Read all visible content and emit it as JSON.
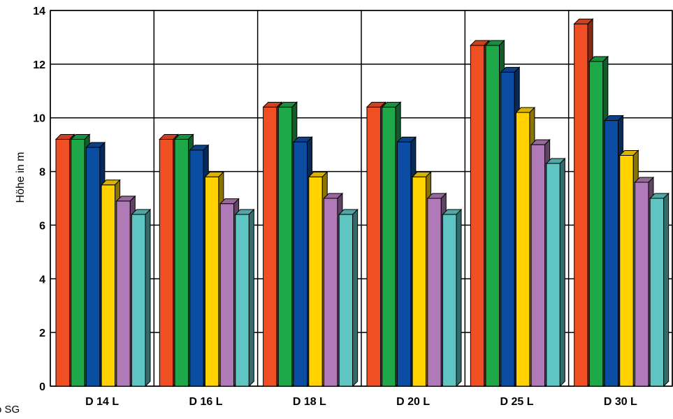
{
  "chart_data": {
    "type": "bar",
    "title": "",
    "xlabel": "",
    "ylabel": "Höhe in m",
    "ylim": [
      0,
      14
    ],
    "yticks": [
      0,
      2,
      4,
      6,
      8,
      10,
      12,
      14
    ],
    "grid": true,
    "legend": "none",
    "style": "3d-bars",
    "categories": [
      "D 14 L",
      "D 16 L",
      "D 18 L",
      "D 20 L",
      "D 25 L",
      "D 30 L"
    ],
    "series": [
      {
        "color": "#f04e23",
        "values": [
          9.2,
          9.2,
          10.4,
          10.4,
          12.7,
          13.5
        ]
      },
      {
        "color": "#1fa84a",
        "values": [
          9.2,
          9.2,
          10.4,
          10.4,
          12.7,
          12.1
        ]
      },
      {
        "color": "#0b4da2",
        "values": [
          8.9,
          8.8,
          9.1,
          9.1,
          11.7,
          9.9
        ]
      },
      {
        "color": "#ffd200",
        "values": [
          7.5,
          7.8,
          7.8,
          7.8,
          10.2,
          8.6
        ]
      },
      {
        "color": "#b07ab8",
        "values": [
          6.9,
          6.8,
          7.0,
          7.0,
          9.0,
          7.6
        ]
      },
      {
        "color": "#5ec5c2",
        "values": [
          6.4,
          6.4,
          6.4,
          6.4,
          8.3,
          7.0
        ]
      }
    ]
  },
  "corner_note": "o SG"
}
